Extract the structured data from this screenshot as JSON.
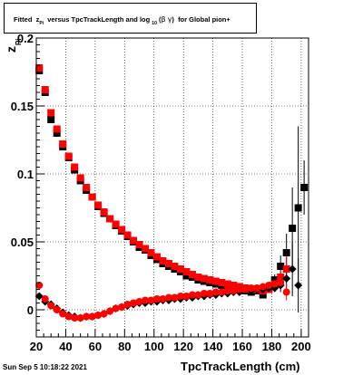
{
  "title": {
    "prefix": "Fitted",
    "z_symbol": "z",
    "z_sub": "Pi",
    "middle": "versus TpcTrackLength and log",
    "log_sub": "10",
    "open_paren": "(",
    "beta": "β",
    "gamma": "γ",
    "close_paren": ")",
    "suffix": "for Global pion+"
  },
  "footer_date": "Sun Sep  5 10:18:22 2021",
  "chart_data": {
    "type": "scatter",
    "title": "Fitted z_Pi versus TpcTrackLength and log10(βγ) for Global pion+",
    "xlabel": "TpcTrackLength (cm)",
    "ylabel": "z_Pi",
    "xlim": [
      20,
      205
    ],
    "ylim": [
      -0.02,
      0.2
    ],
    "grid": true,
    "x_ticks": [
      20,
      40,
      60,
      80,
      100,
      120,
      140,
      160,
      180,
      200
    ],
    "y_ticks": [
      0,
      0.05,
      0.1,
      0.15,
      0.2
    ],
    "y_tick_labels": [
      "0",
      "0.05",
      "0.1",
      "0.15",
      "0.2"
    ],
    "colors": {
      "black_series": "#000000",
      "red_series": "#ff0000"
    },
    "black_squares": {
      "x": [
        22,
        26,
        30,
        34,
        38,
        42,
        46,
        50,
        54,
        58,
        62,
        66,
        70,
        74,
        78,
        82,
        86,
        90,
        94,
        98,
        102,
        106,
        110,
        114,
        118,
        122,
        126,
        130,
        134,
        138,
        142,
        146,
        150,
        154,
        158,
        162,
        166,
        170,
        174,
        178,
        182,
        186,
        190,
        194,
        198,
        202
      ],
      "y": [
        0.176,
        0.16,
        0.14,
        0.13,
        0.12,
        0.112,
        0.103,
        0.095,
        0.088,
        0.083,
        0.076,
        0.071,
        0.067,
        0.062,
        0.058,
        0.054,
        0.05,
        0.046,
        0.044,
        0.04,
        0.037,
        0.034,
        0.032,
        0.03,
        0.028,
        0.025,
        0.024,
        0.022,
        0.021,
        0.02,
        0.019,
        0.018,
        0.017,
        0.016,
        0.015,
        0.014,
        0.013,
        0.014,
        0.011,
        0.015,
        0.022,
        0.032,
        0.042,
        0.06,
        0.075,
        0.09
      ],
      "y_err": [
        0,
        0,
        0,
        0,
        0,
        0,
        0,
        0,
        0,
        0,
        0,
        0,
        0,
        0,
        0,
        0,
        0,
        0,
        0,
        0,
        0,
        0,
        0,
        0,
        0,
        0,
        0,
        0,
        0,
        0,
        0,
        0,
        0,
        0,
        0,
        0,
        0,
        0,
        0,
        0,
        0.004,
        0.008,
        0.014,
        0.03,
        0.06,
        0.02
      ]
    },
    "red_squares": {
      "x": [
        22,
        26,
        30,
        34,
        38,
        42,
        46,
        50,
        54,
        58,
        62,
        66,
        70,
        74,
        78,
        82,
        86,
        90,
        94,
        98,
        102,
        106,
        110,
        114,
        118,
        122,
        126,
        130,
        134,
        138,
        142,
        146,
        150,
        154,
        158,
        162,
        166,
        170,
        174,
        178,
        182,
        186,
        190
      ],
      "y": [
        0.178,
        0.162,
        0.145,
        0.133,
        0.122,
        0.113,
        0.105,
        0.097,
        0.09,
        0.083,
        0.077,
        0.072,
        0.067,
        0.063,
        0.059,
        0.055,
        0.051,
        0.048,
        0.045,
        0.042,
        0.039,
        0.036,
        0.034,
        0.032,
        0.03,
        0.028,
        0.026,
        0.024,
        0.023,
        0.022,
        0.021,
        0.02,
        0.019,
        0.018,
        0.017,
        0.016,
        0.015,
        0.015,
        0.014,
        0.015,
        0.019,
        0.024,
        0.03
      ],
      "y_err": [
        0,
        0,
        0,
        0,
        0,
        0,
        0,
        0,
        0,
        0,
        0,
        0,
        0,
        0,
        0,
        0,
        0,
        0,
        0,
        0,
        0,
        0,
        0,
        0,
        0,
        0,
        0,
        0,
        0,
        0,
        0,
        0,
        0,
        0,
        0,
        0,
        0,
        0,
        0,
        0,
        0.004,
        0.006,
        0.01
      ]
    },
    "black_diamonds": {
      "x": [
        22,
        26,
        30,
        34,
        38,
        42,
        46,
        50,
        54,
        58,
        62,
        66,
        70,
        74,
        78,
        82,
        86,
        90,
        94,
        98,
        102,
        106,
        110,
        114,
        118,
        122,
        126,
        130,
        134,
        138,
        142,
        146,
        150,
        154,
        158,
        162,
        166,
        170,
        174,
        178,
        182,
        186,
        190,
        194,
        198
      ],
      "y": [
        0.01,
        0.006,
        0.004,
        0.001,
        -0.002,
        -0.004,
        -0.005,
        -0.006,
        -0.005,
        -0.005,
        -0.004,
        -0.003,
        -0.001,
        0.001,
        0.002,
        0.003,
        0.004,
        0.005,
        0.005,
        0.006,
        0.006,
        0.007,
        0.007,
        0.008,
        0.008,
        0.009,
        0.009,
        0.01,
        0.01,
        0.011,
        0.011,
        0.012,
        0.012,
        0.013,
        0.013,
        0.014,
        0.014,
        0.015,
        0.015,
        0.016,
        0.016,
        0.018,
        0.023,
        0.03,
        0.018
      ],
      "y_err": [
        0,
        0,
        0,
        0,
        0,
        0,
        0,
        0,
        0,
        0,
        0,
        0,
        0,
        0,
        0,
        0,
        0,
        0,
        0,
        0,
        0,
        0,
        0,
        0,
        0,
        0,
        0,
        0,
        0,
        0,
        0,
        0,
        0,
        0,
        0,
        0,
        0,
        0,
        0,
        0,
        0.003,
        0.005,
        0.008,
        0.02,
        0.02
      ]
    },
    "red_circles": {
      "x": [
        22,
        26,
        30,
        34,
        38,
        42,
        46,
        50,
        54,
        58,
        62,
        66,
        70,
        74,
        78,
        82,
        86,
        90,
        94,
        98,
        102,
        106,
        110,
        114,
        118,
        122,
        126,
        130,
        134,
        138,
        142,
        146,
        150,
        154,
        158,
        162,
        166,
        170,
        174,
        178,
        182,
        186,
        190
      ],
      "y": [
        0.018,
        0.008,
        0.003,
        0.0,
        -0.003,
        -0.005,
        -0.006,
        -0.006,
        -0.005,
        -0.005,
        -0.004,
        -0.003,
        -0.001,
        0.001,
        0.002,
        0.004,
        0.005,
        0.006,
        0.007,
        0.007,
        0.008,
        0.008,
        0.009,
        0.009,
        0.01,
        0.01,
        0.011,
        0.011,
        0.012,
        0.012,
        0.013,
        0.013,
        0.014,
        0.014,
        0.015,
        0.015,
        0.016,
        0.016,
        0.017,
        0.018,
        0.019,
        0.02,
        0.013
      ],
      "y_err": [
        0,
        0,
        0,
        0,
        0,
        0,
        0,
        0,
        0,
        0,
        0,
        0,
        0,
        0,
        0,
        0,
        0,
        0,
        0,
        0,
        0,
        0,
        0,
        0,
        0,
        0,
        0,
        0,
        0,
        0,
        0,
        0,
        0,
        0,
        0,
        0,
        0,
        0,
        0,
        0,
        0.002,
        0.004,
        0.006
      ]
    }
  }
}
